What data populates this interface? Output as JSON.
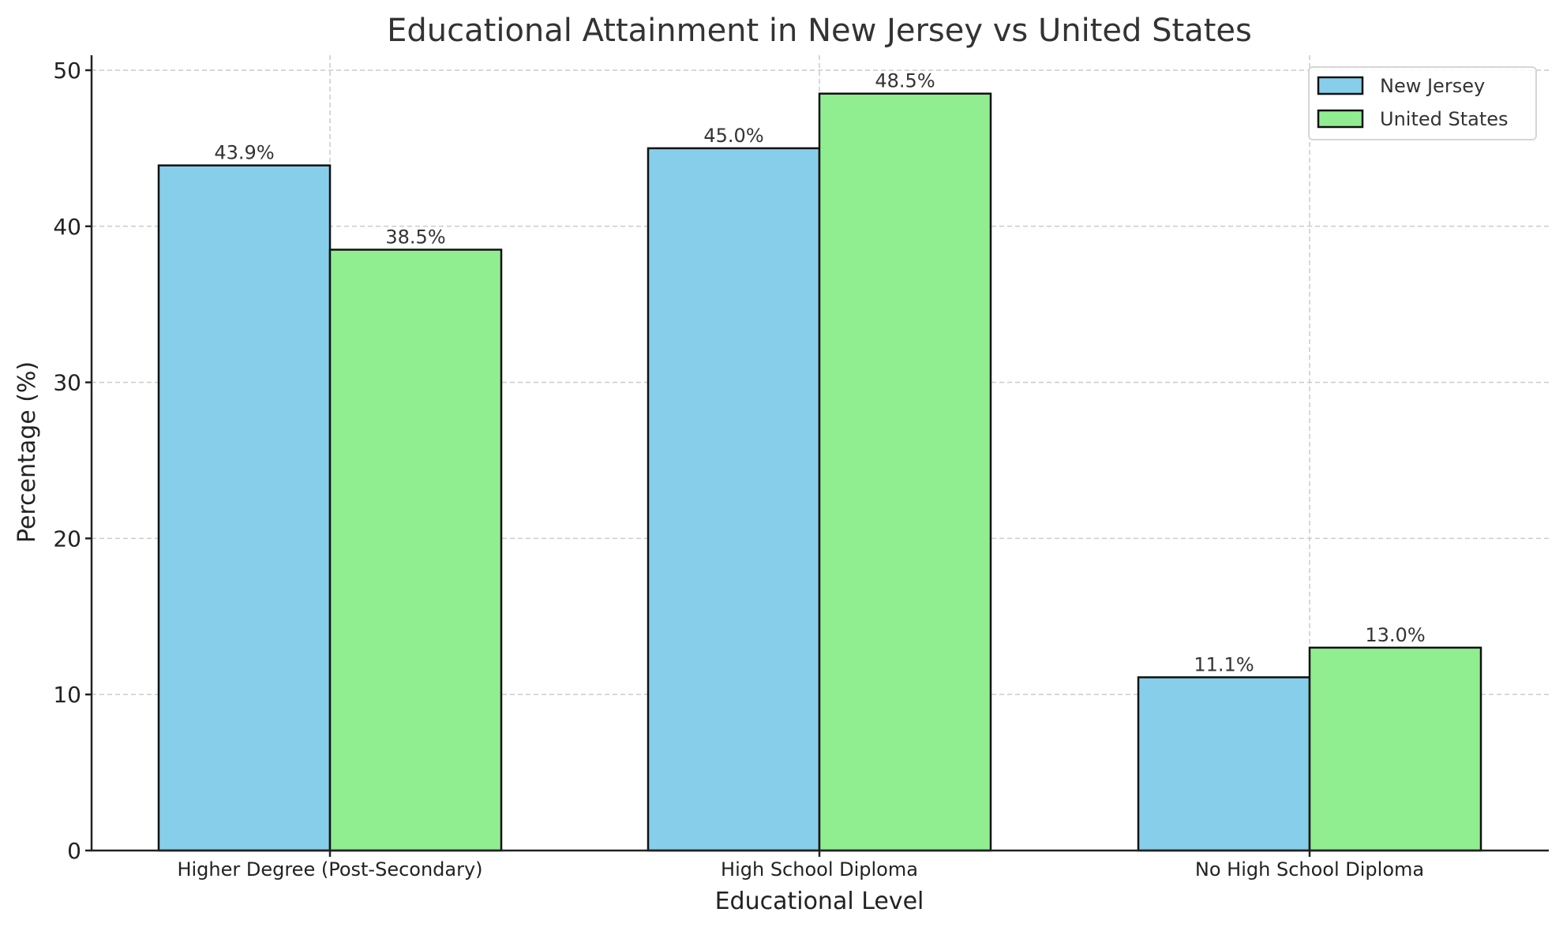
{
  "chart_data": {
    "type": "bar",
    "title": "Educational Attainment in New Jersey vs United States",
    "xlabel": "Educational Level",
    "ylabel": "Percentage (%)",
    "categories": [
      "Higher Degree (Post-Secondary)",
      "High School Diploma",
      "No High School Diploma"
    ],
    "series": [
      {
        "name": "New Jersey",
        "color": "#87CEEB",
        "values": [
          43.9,
          45.0,
          11.1
        ],
        "labels": [
          "43.9%",
          "45.0%",
          "11.1%"
        ]
      },
      {
        "name": "United States",
        "color": "#90EE90",
        "values": [
          38.5,
          48.5,
          13.0
        ],
        "labels": [
          "38.5%",
          "48.5%",
          "13.0%"
        ]
      }
    ],
    "ylim": [
      0,
      51.3
    ],
    "yticks": [
      0,
      10,
      20,
      30,
      40,
      50
    ],
    "ytick_labels": [
      "0",
      "10",
      "20",
      "30",
      "40",
      "50"
    ],
    "grid": true,
    "grid_style": "dashed",
    "legend_position": "upper right"
  }
}
